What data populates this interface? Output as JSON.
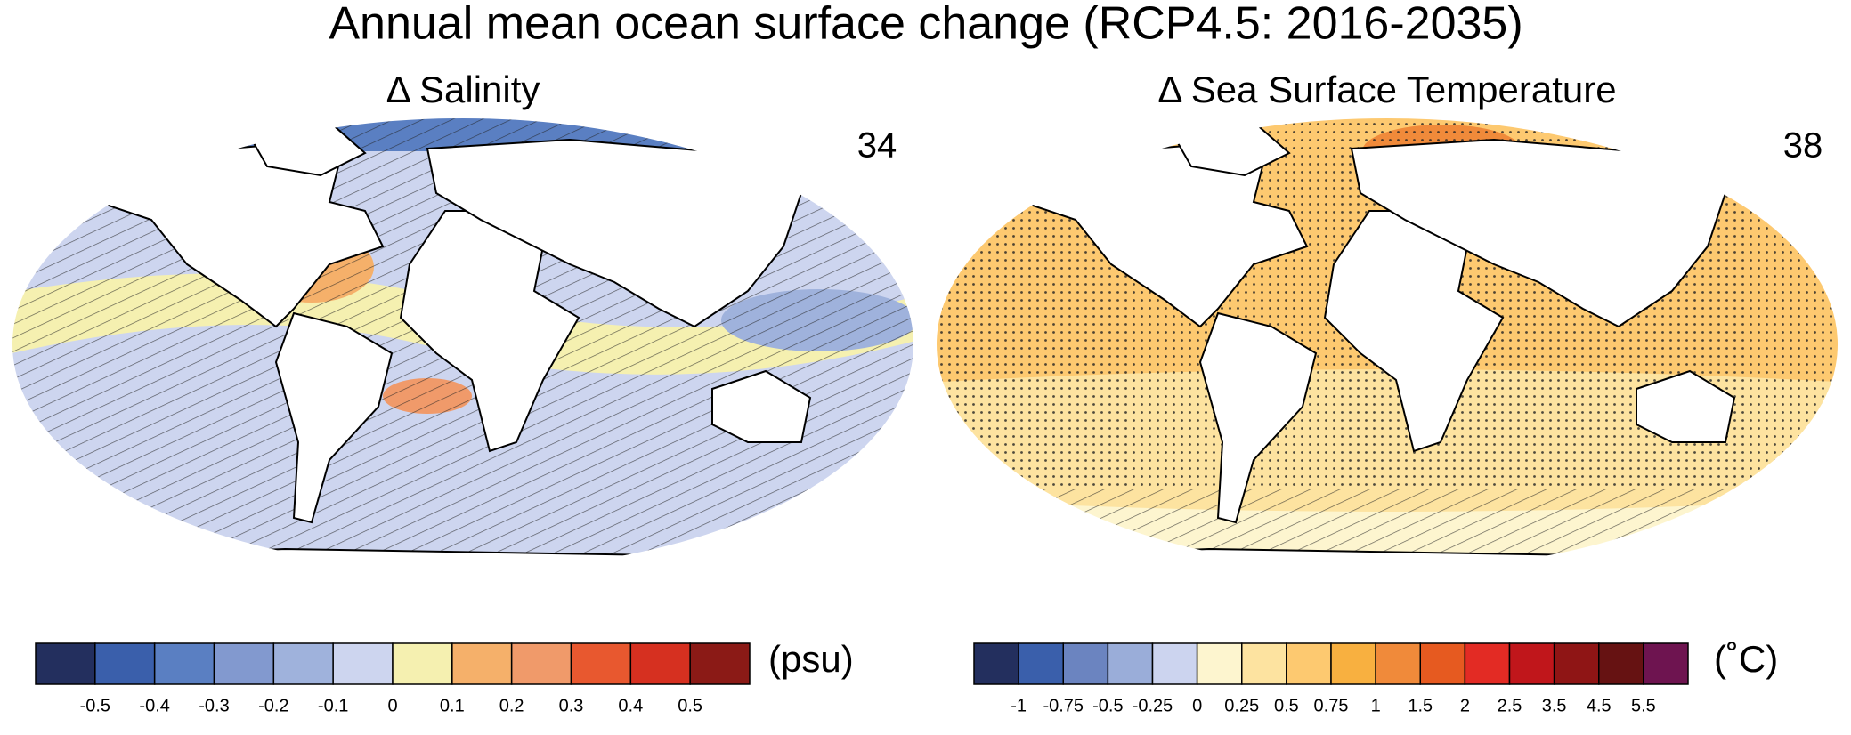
{
  "title": "Annual mean ocean surface change (RCP4.5: 2016-2035)",
  "panels": [
    {
      "title": "Δ Salinity",
      "model_count": 34,
      "colorbar": {
        "unit": "(psu)",
        "colors": [
          "#232f5e",
          "#3a5fab",
          "#5a7fc2",
          "#8299cf",
          "#9fb2dc",
          "#cdd5ef",
          "#f5f0b0",
          "#f5b06a",
          "#f09a6a",
          "#e8582f",
          "#d63020",
          "#8b1a16"
        ],
        "ticks": [
          -0.5,
          -0.4,
          -0.3,
          -0.2,
          -0.1,
          0,
          0.1,
          0.2,
          0.3,
          0.4,
          0.5
        ]
      }
    },
    {
      "title": "Δ Sea Surface Temperature",
      "model_count": 38,
      "colorbar": {
        "unit": "(˚C)",
        "colors": [
          "#232f5e",
          "#3a5fab",
          "#6b84c0",
          "#9aadd9",
          "#ccd4ef",
          "#fdf5cf",
          "#fde3a0",
          "#fdc970",
          "#f8b040",
          "#f08a3a",
          "#e65a20",
          "#e32b24",
          "#c0161b",
          "#8f1515",
          "#661212",
          "#6e1450"
        ],
        "ticks": [
          -1,
          -0.75,
          -0.5,
          -0.25,
          0,
          0.25,
          0.5,
          0.75,
          1,
          1.5,
          2,
          2.5,
          3.5,
          4.5,
          5.5
        ]
      }
    }
  ]
}
